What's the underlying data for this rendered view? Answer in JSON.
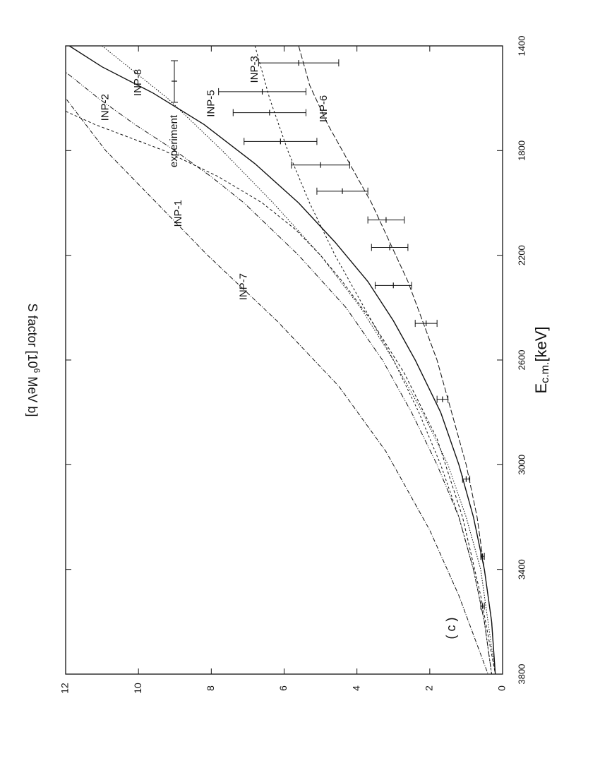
{
  "chart_data": {
    "type": "line",
    "orientation": "rotated-90-clockwise",
    "panel_label": "( c )",
    "xlabel": {
      "main": "E",
      "sub": "c.m.",
      "tail": "[keV]"
    },
    "ylabel": {
      "pre": "S factor [10",
      "sup": "6",
      "post": " MeV b]"
    },
    "xlim": [
      1400,
      3800
    ],
    "ylim": [
      0,
      12
    ],
    "x_ticks": [
      "1400",
      "1800",
      "2200",
      "2600",
      "3000",
      "3400",
      "3800"
    ],
    "y_ticks": [
      "0",
      "2",
      "4",
      "6",
      "8",
      "10",
      "12"
    ],
    "grid": false,
    "legend_position": "top-right",
    "legend": [
      {
        "name": "experiment",
        "style": "errorbar"
      }
    ],
    "series": [
      {
        "name": "INP-1",
        "dash": "6,2,1,2",
        "x": [
          1400,
          1600,
          1800,
          2000,
          2200,
          2450,
          2700,
          2950,
          3250,
          3500,
          3800
        ],
        "y": [
          13.2,
          12.0,
          10.9,
          9.5,
          8.1,
          6.2,
          4.5,
          3.2,
          2.0,
          1.2,
          0.4
        ]
      },
      {
        "name": "INP-2",
        "dash": "4,3",
        "x": [
          1650,
          1700,
          1800,
          1900,
          2000,
          2100,
          2200,
          2300,
          2450,
          2650,
          2900,
          3200,
          3500,
          3800
        ],
        "y": [
          12.0,
          11.2,
          9.3,
          7.8,
          6.6,
          5.7,
          5.0,
          4.4,
          3.6,
          2.7,
          1.8,
          1.1,
          0.6,
          0.2
        ]
      },
      {
        "name": "INP-3",
        "dash": "3,3",
        "x": [
          1400,
          1600,
          1800,
          2000,
          2200,
          2400,
          2600,
          2800,
          3000,
          3200,
          3400,
          3600,
          3800
        ],
        "y": [
          6.8,
          6.4,
          5.9,
          5.3,
          4.6,
          3.8,
          3.0,
          2.3,
          1.7,
          1.2,
          0.8,
          0.5,
          0.3
        ]
      },
      {
        "name": "INP-5",
        "dash": "1.5,2",
        "x": [
          1400,
          1500,
          1600,
          1800,
          2000,
          2200,
          2400,
          2600,
          2800,
          3000,
          3200,
          3400,
          3600,
          3800
        ],
        "y": [
          11.0,
          10.1,
          9.2,
          7.7,
          6.3,
          5.0,
          3.9,
          3.0,
          2.2,
          1.5,
          1.0,
          0.6,
          0.4,
          0.2
        ]
      },
      {
        "name": "INP-6",
        "dash": "8,3",
        "x": [
          1400,
          1550,
          1700,
          1850,
          2000,
          2150,
          2300,
          2450,
          2600,
          2800,
          3000,
          3200,
          3400,
          3600,
          3800
        ],
        "y": [
          5.6,
          5.3,
          4.8,
          4.2,
          3.6,
          3.1,
          2.6,
          2.2,
          1.8,
          1.4,
          1.0,
          0.7,
          0.5,
          0.3,
          0.2
        ]
      },
      {
        "name": "INP-7",
        "dash": "7,2,1,2,1,2",
        "x": [
          1400,
          1500,
          1600,
          1700,
          1800,
          1900,
          2000,
          2200,
          2400,
          2600,
          2800,
          3000,
          3200,
          3400,
          3600,
          3800
        ],
        "y": [
          12.8,
          12.0,
          11.1,
          10.1,
          9.0,
          8.0,
          7.1,
          5.6,
          4.3,
          3.3,
          2.5,
          1.8,
          1.2,
          0.8,
          0.5,
          0.3
        ]
      },
      {
        "name": "INP-8",
        "dash": "",
        "x": [
          1400,
          1480,
          1580,
          1700,
          1850,
          2000,
          2150,
          2300,
          2450,
          2600,
          2800,
          3000,
          3200,
          3400,
          3600,
          3800
        ],
        "y": [
          11.9,
          11.0,
          9.6,
          8.2,
          6.8,
          5.6,
          4.6,
          3.7,
          3.0,
          2.4,
          1.7,
          1.2,
          0.8,
          0.5,
          0.3,
          0.2
        ]
      }
    ],
    "labels": [
      {
        "text": "INP-1",
        "x": 2040,
        "y": 8.9
      },
      {
        "text": "INP-2",
        "x": 1635,
        "y": 10.9
      },
      {
        "text": "INP-3",
        "x": 1490,
        "y": 6.8
      },
      {
        "text": "INP-5",
        "x": 1620,
        "y": 8.0
      },
      {
        "text": "INP-6",
        "x": 1640,
        "y": 4.9
      },
      {
        "text": "INP-7",
        "x": 2320,
        "y": 7.1
      },
      {
        "text": "INP-8",
        "x": 1540,
        "y": 10.0
      }
    ],
    "experiment": [
      {
        "x": 1465,
        "y": 5.6,
        "err": 1.1
      },
      {
        "x": 1575,
        "y": 6.6,
        "err": 1.2
      },
      {
        "x": 1655,
        "y": 6.4,
        "err": 1.0
      },
      {
        "x": 1765,
        "y": 6.1,
        "err": 1.0
      },
      {
        "x": 1855,
        "y": 5.0,
        "err": 0.8
      },
      {
        "x": 1955,
        "y": 4.4,
        "err": 0.7
      },
      {
        "x": 2065,
        "y": 3.2,
        "err": 0.5
      },
      {
        "x": 2170,
        "y": 3.1,
        "err": 0.5
      },
      {
        "x": 2315,
        "y": 3.0,
        "err": 0.5
      },
      {
        "x": 2460,
        "y": 2.1,
        "err": 0.3
      },
      {
        "x": 2750,
        "y": 1.65,
        "err": 0.15
      },
      {
        "x": 3055,
        "y": 1.0,
        "err": 0.1
      },
      {
        "x": 3350,
        "y": 0.55,
        "err": 0.05
      },
      {
        "x": 3540,
        "y": 0.55,
        "err": 0.05
      }
    ]
  }
}
